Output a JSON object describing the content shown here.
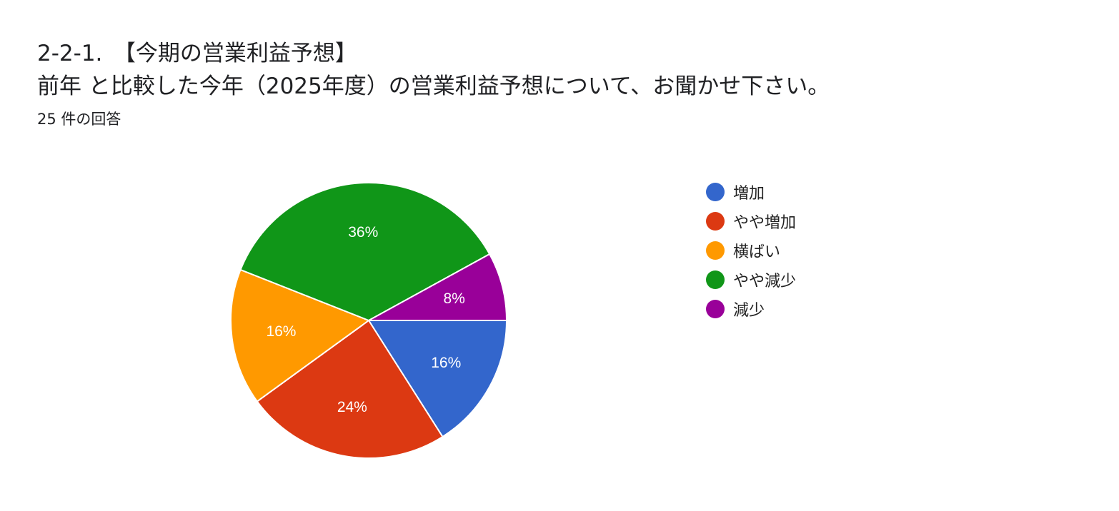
{
  "header": {
    "line1": "2-2-1.　【今期の営業利益予想】",
    "line2": "前年 と比較した今年（2025年度）の営業利益予想について、お聞かせ下さい。",
    "response_count": "25 件の回答"
  },
  "chart_data": {
    "type": "pie",
    "title": "2-2-1.　【今期の営業利益予想】 前年 と比較した今年（2025年度）の営業利益予想について、お聞かせ下さい。",
    "categories": [
      "増加",
      "やや増加",
      "横ばい",
      "やや減少",
      "減少"
    ],
    "values": [
      16,
      24,
      16,
      36,
      8
    ],
    "labels": [
      "16%",
      "24%",
      "16%",
      "36%",
      "8%"
    ],
    "colors": [
      "#3366cc",
      "#dc3912",
      "#ff9900",
      "#109618",
      "#990099"
    ],
    "legend_position": "right",
    "label_color": "#ffffff"
  }
}
